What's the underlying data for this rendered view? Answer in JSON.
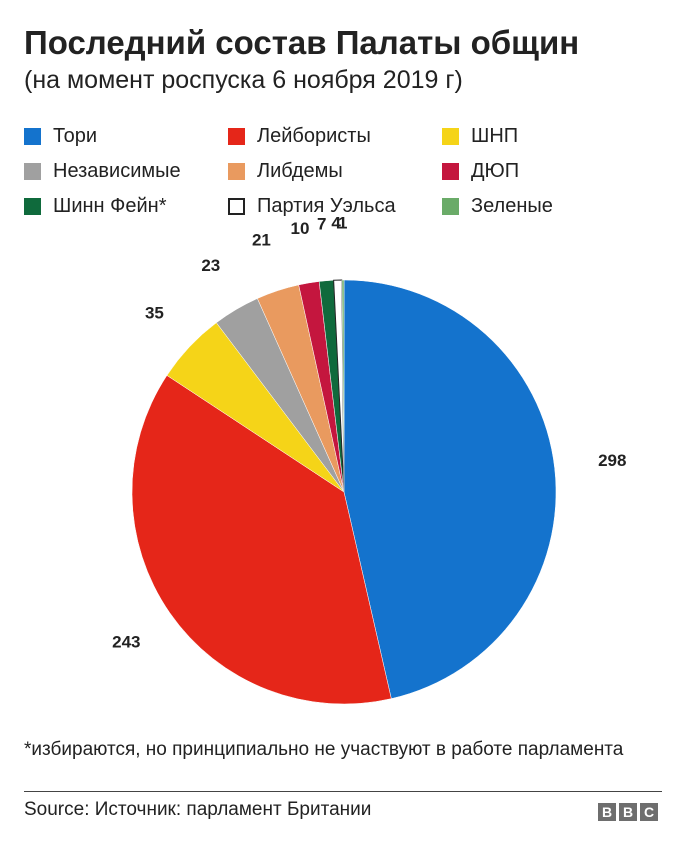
{
  "title": "Последний состав Палаты общин",
  "subtitle": "(на момент роспуска 6 ноября 2019 г)",
  "legend": [
    {
      "label": "Тори",
      "color": "#1473cd"
    },
    {
      "label": "Лейбористы",
      "color": "#e52619"
    },
    {
      "label": "ШНП",
      "color": "#f5d418"
    },
    {
      "label": "Независимые",
      "color": "#a0a0a0"
    },
    {
      "label": "Либдемы",
      "color": "#e99a5f"
    },
    {
      "label": "ДЮП",
      "color": "#c4163e"
    },
    {
      "label": "Шинн Фейн*",
      "color": "#0f6a3c"
    },
    {
      "label": "Партия Уэльса",
      "color": "#ffffff",
      "border": "#222222"
    },
    {
      "label": "Зеленые",
      "color": "#6aab68"
    }
  ],
  "chart_data": {
    "type": "pie",
    "start": "top",
    "direction": "clockwise",
    "slices": [
      {
        "label": "Тори",
        "value": 298,
        "color": "#1473cd",
        "data_label": "298"
      },
      {
        "label": "Лейбористы",
        "value": 243,
        "color": "#e52619",
        "data_label": "243"
      },
      {
        "label": "ШНП",
        "value": 35,
        "color": "#f5d418",
        "data_label": "35"
      },
      {
        "label": "Независимые",
        "value": 23,
        "color": "#a0a0a0",
        "data_label": "23"
      },
      {
        "label": "Либдемы",
        "value": 21,
        "color": "#e99a5f",
        "data_label": "21"
      },
      {
        "label": "ДЮП",
        "value": 10,
        "color": "#c4163e",
        "data_label": "10"
      },
      {
        "label": "Шинн Фейн*",
        "value": 7,
        "color": "#0f6a3c",
        "data_label": "7"
      },
      {
        "label": "Партия Уэльса",
        "value": 4,
        "color": "#ffffff",
        "data_label": "4"
      },
      {
        "label": "Зеленые",
        "value": 1,
        "color": "#6aab68",
        "data_label": "1"
      }
    ]
  },
  "note": "*избираются, но принципиально не участвуют в работе парламента",
  "source": "Source: Источник: парламент Британии",
  "logo": [
    "B",
    "B",
    "C"
  ]
}
